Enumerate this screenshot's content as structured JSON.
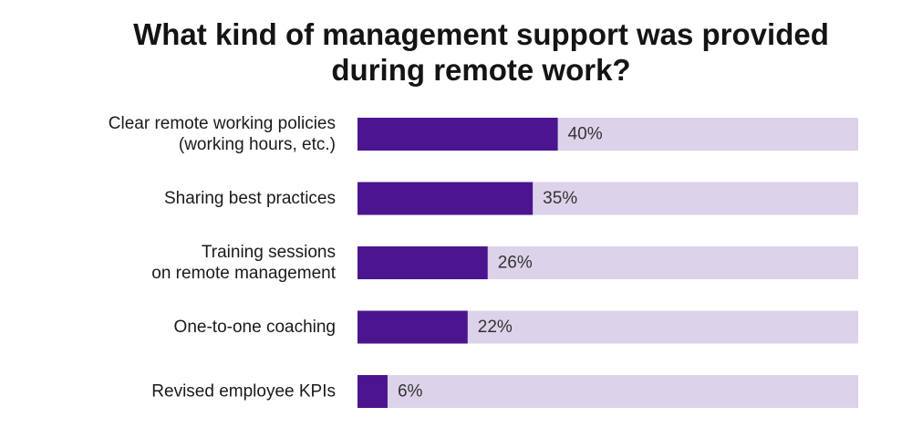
{
  "chart_data": {
    "type": "bar",
    "orientation": "horizontal",
    "title_lines": [
      "What kind of management support was provided",
      "during remote work?"
    ],
    "categories": [
      [
        "Clear remote working policies",
        "(working hours, etc.)"
      ],
      [
        "Sharing best practices"
      ],
      [
        "Training sessions",
        "on remote management"
      ],
      [
        "One-to-one coaching"
      ],
      [
        "Revised employee KPIs"
      ]
    ],
    "values": [
      40,
      35,
      26,
      22,
      6
    ],
    "value_labels": [
      "40%",
      "35%",
      "26%",
      "22%",
      "6%"
    ],
    "xlim": [
      0,
      100
    ],
    "unit": "%",
    "grid": false,
    "legend": "none",
    "colors": {
      "bar": "#4b1590",
      "track": "#dcd3ea",
      "value_text": "#333333",
      "label_text": "#1a1a1a"
    }
  }
}
